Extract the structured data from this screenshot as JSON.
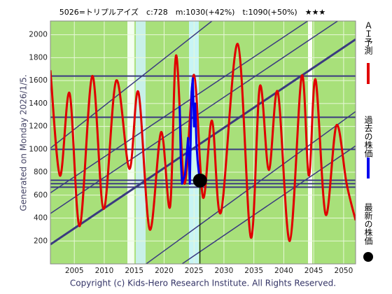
{
  "chart_data": {
    "type": "line",
    "title": "5026=トリプルアイズ　c:728　m:1030(+42%)　t:1090(+50%)　★★★",
    "side_label": "Generated on Monday 2026/1/5.",
    "footer": "Copyright (c) Kids-Hero Research Institute. All Rights Reserved.",
    "xlim": [
      2001,
      2052
    ],
    "ylim": [
      0,
      2120
    ],
    "xticks": [
      2005,
      2010,
      2015,
      2020,
      2025,
      2030,
      2035,
      2040,
      2045,
      2050
    ],
    "yticks": [
      200,
      400,
      600,
      800,
      1000,
      1200,
      1400,
      1600,
      1800,
      2000
    ],
    "grid": true,
    "series": [
      {
        "name": "ＡＩ予測",
        "color": "#e00000",
        "x": [
          2001,
          2002.6,
          2004.2,
          2005.9,
          2008.0,
          2009.9,
          2012.0,
          2014.2,
          2015.7,
          2017.6,
          2019.5,
          2021.0,
          2022.0,
          2023.4,
          2025.0,
          2026.5,
          2028.0,
          2029.5,
          2032.3,
          2034.5,
          2036.0,
          2037.5,
          2039.0,
          2041.0,
          2043.0,
          2044.2,
          2045.3,
          2047.0,
          2048.8,
          2050.5,
          2052.0
        ],
        "values": [
          1690,
          770,
          1490,
          330,
          1640,
          480,
          1600,
          830,
          1500,
          300,
          1150,
          500,
          1820,
          700,
          1650,
          580,
          1250,
          450,
          1920,
          230,
          1550,
          820,
          1500,
          200,
          1640,
          770,
          1610,
          430,
          1210,
          700,
          380
        ]
      },
      {
        "name": "過去の株価",
        "color": "#0000ee",
        "x": [
          2022.6,
          2022.8,
          2023.0,
          2023.5,
          2024.0,
          2024.3,
          2024.6,
          2024.8,
          2025.0,
          2025.2,
          2025.4,
          2025.6,
          2025.8,
          2026.0
        ],
        "values": [
          1380,
          900,
          700,
          780,
          1100,
          700,
          1500,
          1620,
          1200,
          1400,
          1050,
          900,
          800,
          728
        ]
      },
      {
        "name": "最新の株価",
        "color": "#000000",
        "marker": "dot",
        "x": [
          2026.0
        ],
        "values": [
          728
        ]
      }
    ],
    "hlines": [
      1640,
      1280,
      1000,
      730,
      700,
      670
    ],
    "trend_lines": [
      {
        "x": [
          2001,
          2052
        ],
        "values": [
          170,
          1960
        ],
        "width": 3
      },
      {
        "x": [
          2001,
          2044
        ],
        "values": [
          620,
          2120
        ],
        "width": 1.5
      },
      {
        "x": [
          2001,
          2049
        ],
        "values": [
          440,
          2120
        ],
        "width": 1.5
      },
      {
        "x": [
          2001,
          2028
        ],
        "values": [
          1010,
          2120
        ],
        "width": 1.5
      },
      {
        "x": [
          2017,
          2052
        ],
        "values": [
          0,
          1330
        ],
        "width": 1.5
      },
      {
        "x": [
          2023,
          2052
        ],
        "values": [
          0,
          1030
        ],
        "width": 1.5
      }
    ]
  }
}
